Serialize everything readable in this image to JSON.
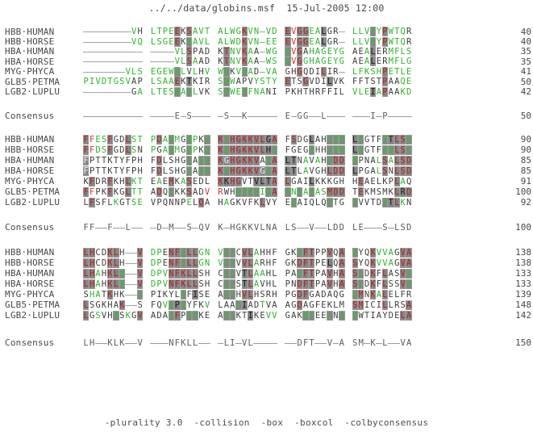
{
  "title": "../../data/globins.msf  15-Jul-2005 12:00",
  "footer": "-plurality 3.0  -collision  -box  -boxcol  -colbyconsensus",
  "consensus_label": "Consensus",
  "colors": {
    "green": "#2eb42e",
    "red": "#c63535",
    "boxed_red": "#b32323",
    "boxed_green": "#36c136",
    "box_fill": "#868686",
    "text": "#3d3d3d"
  },
  "legend_note": "style codes: - dash, b black, g green, r red; uppercase = gray-boxed: B black, G green, R red, W white",
  "blocks": [
    {
      "rows": [
        {
          "label": "HBB·HUMAN",
          "num": "40",
          "seq": [
            "--------VH",
            "LTPEEKSAVT",
            "ALWGKVN-VD",
            "EVGGEALGR-",
            "LLVVYPWTQR"
          ],
          "sty": [
            "--------gb",
            "ggggRbRggg",
            "ggggRgg-gg",
            "RrRRggBbb-",
            "gggGgRgggb"
          ]
        },
        {
          "label": "HBB·HORSE",
          "num": "40",
          "seq": [
            "--------VQ",
            "LSGEEKAAVL",
            "ALWDKVN-EE",
            "EVGGEALGR-",
            "LLVVYPWTQR"
          ],
          "sty": [
            "--------gg",
            "ggggRbGggg",
            "ggggRgg-gg",
            "RrRRggBbb-",
            "gggGgRgggb"
          ]
        },
        {
          "label": "HBA·HUMAN",
          "num": "35",
          "seq": [
            "----------",
            "----VLSPAD",
            "KTNVKAA-WG",
            "KVGAHAGEYG",
            "AEALERMFLS"
          ],
          "sty": [
            "----------",
            "----ggRbbb",
            "bRggRgb-gg",
            "GrRbgggggg",
            "bbgBbbgggg"
          ]
        },
        {
          "label": "HBA·HORSE",
          "num": "35",
          "seq": [
            "----------",
            "----VLSAAD",
            "KTNVKAA-WS",
            "KVGGHAGEYG",
            "AEALERMFLG"
          ],
          "sty": [
            "----------",
            "----ggRgbb",
            "bRggRgb-gg",
            "GrRggggggg",
            "bbgBbbgggg"
          ]
        },
        {
          "label": "MYG·PHYCA",
          "num": "41",
          "seq": [
            "-------VLS",
            "EGEWQLVLHV",
            "WAKVEAD-VA",
            "GHGQDILIR-",
            "LFKSHPETLE"
          ],
          "sty": [
            "-------ggg",
            "ggggGgbgbg",
            "gGbgGgb-gg",
            "bbRbbbRbb-",
            "gggggRgggg"
          ]
        },
        {
          "label": "GLB5·PETMA",
          "num": "50",
          "seq": [
            "PIVDTGSVAP",
            "LSAAEKTKIR",
            "SAWAPVYSTY",
            "ETSGVDILVK",
            "FFTSTPAAQE"
          ],
          "sty": [
            "ggggggggbb",
            "ggggRbBbbb",
            "gGgbbbgggg",
            "RbbRbbbBbb",
            "bbbbbRbbgg"
          ]
        },
        {
          "label": "LGB2·LUPLU",
          "num": "42",
          "seq": [
            "--------GA",
            "LTESQAALVK",
            "SSWEEFNANI",
            "PKHTHRFFIL",
            "VLEIAPAAKD"
          ],
          "sty": [
            "--------bg",
            "ggggGgGgbb",
            "gGggGgggbb",
            "bbbbbbbbbb",
            "gggBgRbbgg"
          ]
        }
      ],
      "consensus": {
        "num": "50",
        "seq": [
          "----------",
          "----E-S---",
          "-S--K-----",
          "E-GG--L---",
          "---I-P----"
        ]
      }
    },
    {
      "rows": [
        {
          "label": "HBB·HUMAN",
          "num": "90",
          "seq": [
            "FFESFGDLST",
            "PDAVMGNPKV",
            "KAHGKKVLGA",
            "FSDGLAHLDN",
            "LKGTFATLSE"
          ],
          "sty": [
            "RrggRbbRgg",
            "gRgGgbGgbG",
            "RGRRRRRRBR",
            "bRbbBbbGGG",
            "BGbbbGBRRG"
          ]
        },
        {
          "label": "HBB·HORSE",
          "num": "90",
          "seq": [
            "FFDSFGDLSN",
            "PGAVMGNPKV",
            "KAHGKKVLHS",
            "FGEGVHHLDN",
            "LKGTFAALSE"
          ],
          "sty": [
            "RrggRbbRgb",
            "gbgGgbGgbG",
            "RGRRRRRRBG",
            "bbbbGbbGGG",
            "BGbbbGGRRG"
          ]
        },
        {
          "label": "HBA·HUMAN",
          "num": "85",
          "seq": [
            "FPTTKTYFPH",
            "FDLSHGSAQV",
            "KGHGKKVADA",
            "LTNAVAHVDD",
            "MPNALSALSD"
          ],
          "sty": [
            "Wbbbbbbbbb",
            "bRbbbbGbGG",
            "RWRRRRRbGR",
            "BBbgbgbGRR",
            "GbbbgRgRRR"
          ]
        },
        {
          "label": "HBA·HORSE",
          "num": "85",
          "seq": [
            "FPTTKTYFPH",
            "FDLSHGSAQV",
            "KAHGKKVGDA",
            "LTLAVGHLDD",
            "LPGALSNLSD"
          ],
          "sty": [
            "Wbbbbbbbbb",
            "bRbbbbGbGG",
            "RGRRRRRWGR",
            "BBbgbbbRRR",
            "BbbbgRbRRR"
          ]
        },
        {
          "label": "MYG·PHYCA",
          "num": "91",
          "seq": [
            "KFDRFKHLKT",
            "EAEMKASEDL",
            "KKHGVTVLTA",
            "LGAILKKKGH",
            "HEAELKPLAQ"
          ],
          "sty": [
            "bRbbRbbRgg",
            "bgbRbgRbbb",
            "RBRRbbBBBR",
            "RbbbBbbbbb",
            "bRbbbbbRgb"
          ]
        },
        {
          "label": "GLB5·PETMA",
          "num": "100",
          "seq": [
            "FFPKFKGLTT",
            "ADQLKKSADV",
            "RWHAERIINA",
            "VNDAVASMDD",
            "TEKMSMKLRD"
          ],
          "sty": [
            "RrbbRbbRgg",
            "bRbGbbRbbr",
            "rbbGGGGgGR",
            "GgGgGggRRR",
            "bRbbbbbRBR"
          ]
        },
        {
          "label": "LGB2·LUPLU",
          "num": "92",
          "seq": [
            "LFSFLKGTSE",
            "VPQNNPELQA",
            "HAGKVFKLVY",
            "EAAIQLQVTG",
            "VVVTDATLKN"
          ],
          "sty": [
            "bRbbbgbbgg",
            "bbbbbbgbRb",
            "bgbbbbbRbb",
            "bGbbbbbGbb",
            "GbbbbGBRgb"
          ]
        }
      ],
      "consensus": {
        "num": "100",
        "seq": [
          "FF--F--L--",
          "-D-M--S-QV",
          "K-HGKKVLNA",
          "LS--V--LDD",
          "LE---S-LSD"
        ]
      }
    },
    {
      "rows": [
        {
          "label": "HBB·HUMAN",
          "num": "138",
          "seq": [
            "LHCDKLH--V",
            "DPENFRLLGN",
            "VLVCVLAHHF",
            "GKEFTPPVQA",
            "AYQKVVAGVA"
          ],
          "sty": [
            "RRbbRRb--R",
            "ggbRRGRRgg",
            "gGGbRRgbbb",
            "bbGRRbbRbR",
            "GbbRgggbRR"
          ]
        },
        {
          "label": "HBB·HORSE",
          "num": "138",
          "seq": [
            "LHCDKLH--V",
            "DPENFRLLGN",
            "VLVVVLARHF",
            "GKDFTPELQA",
            "SYQKVVAGVA"
          ],
          "sty": [
            "RRbbRRb--R",
            "ggbRRGRRgg",
            "gGGbRRgbbb",
            "bbRRRbbBbR",
            "RbbRgggbRR"
          ]
        },
        {
          "label": "HBA·HUMAN",
          "num": "133",
          "seq": [
            "LHAHKLR--V",
            "DPVNFKLLSH",
            "CLLVTLAAHL",
            "PAEFTPAVHA",
            "SLDKFLASVS"
          ],
          "sty": [
            "RRgbRRG--R",
            "gggRRRRRbb",
            "bGGbBRggbb",
            "bbGRRbbRbR",
            "RGbRbRbbRG"
          ]
        },
        {
          "label": "HBA·HORSE",
          "num": "133",
          "seq": [
            "LHAHKLR--V",
            "DPVNFKLLSH",
            "CLLSTLAVHL",
            "PNDFTPAVHA",
            "SLDKFLSSVS"
          ],
          "sty": [
            "RRgbRRG--R",
            "gggRRRRRbb",
            "bGGbBRgbbb",
            "bbRRRbbRbR",
            "RGbRbRbbRG"
          ]
        },
        {
          "label": "MYG·PHYCA",
          "num": "139",
          "seq": [
            "SHATKHK--I",
            "PIKYLEFISE",
            "AIIHVLHSRH",
            "PGDFGADAQG",
            "AMNKALELFR"
          ],
          "sty": [
            "bggbRbb--G",
            "bbbbbGbBbb",
            "bGGbRRbbbb",
            "bbRRbbbbbb",
            "GRbRgRbbbb"
          ]
        },
        {
          "label": "GLB5·PETMA",
          "num": "148",
          "seq": [
            "LSGKHAK--S",
            "FQVDPQYFKV",
            "LAAVIADTVA",
            "AGDAGFEKLM",
            "SMICILLRSA"
          ],
          "sty": [
            "RbbbbbR--b",
            "bbgGBGbbbg",
            "bbbGBbbgbb",
            "bbRbbbbbbb",
            "RRbbbRbbbR"
          ]
        },
        {
          "label": "LGB2·LUPLU",
          "num": "142",
          "seq": [
            "LGSVHVSKGV",
            "ADAHFPVVKE",
            "AILKTIKEVV",
            "GAKWSEELNS",
            "AWTIAYDELA"
          ],
          "sty": [
            "RbgbbGbgbR",
            "bbbGRbGGbb",
            "bGGbbBbbgg",
            "bbbGGbbGbG",
            "GbbbbbbbRR"
          ]
        }
      ],
      "consensus": {
        "num": "150",
        "seq": [
          "LH--KLK--V",
          "---NFKLL--",
          "-LI-VL----",
          "--DFT--V-A",
          "SM-K-L--VA"
        ]
      }
    }
  ]
}
